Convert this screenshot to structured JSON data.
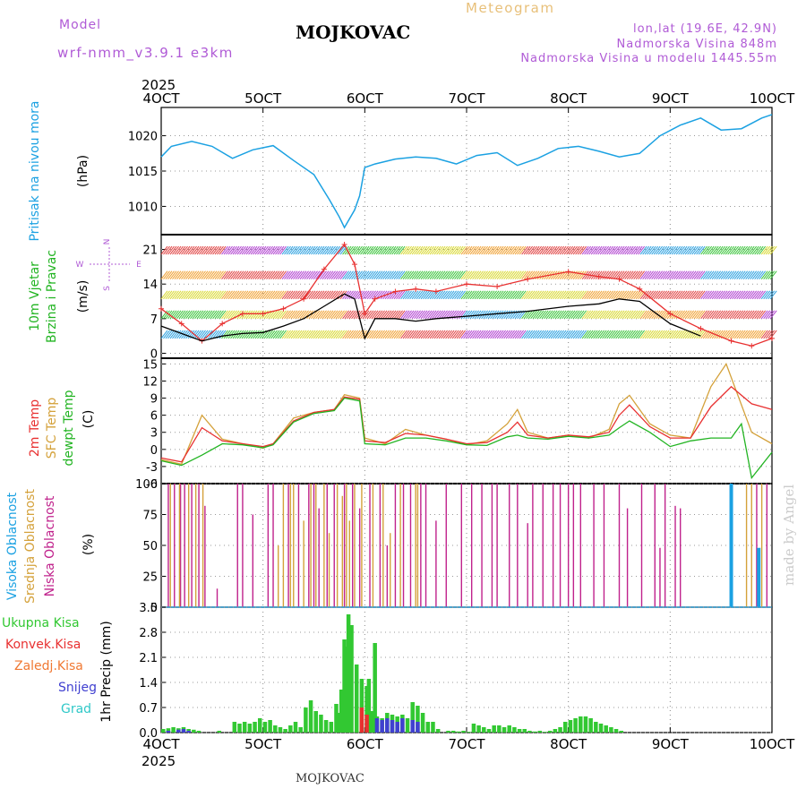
{
  "header": {
    "model_label": "Model",
    "model_name": "wrf-nmm_v3.9.1 e3km",
    "title": "MOJKOVAC",
    "subtitle": "Meteogram",
    "lonlat": "lon,lat (19.6E, 42.9N)",
    "elevation": "Nadmorska Visina 848m",
    "model_elevation": "Nadmorska Visina u modelu 1445.55m"
  },
  "time_axis": {
    "year_top": "2025",
    "year_bottom": "2025",
    "ticks": [
      "4OCT",
      "5OCT",
      "6OCT",
      "7OCT",
      "8OCT",
      "9OCT",
      "10OCT"
    ],
    "range_days": [
      4,
      10
    ]
  },
  "watermark": "made by Angel",
  "footer": "MOJKOVAC",
  "colors": {
    "pressure": "#1ba1e2",
    "wind_speed": "#000000",
    "gust": "#e83030",
    "temp2m": "#e83030",
    "sfc_temp": "#d4a13a",
    "dewpoint": "#22b422",
    "cloud_high": "#1ba1e2",
    "cloud_mid": "#d4a13a",
    "cloud_low": "#c0228c",
    "precip_total": "#32c832",
    "precip_conv": "#e83030",
    "precip_frozen": "#f07832",
    "precip_snow": "#4040d0",
    "precip_grad": "#30c8c8"
  },
  "chart_data": [
    {
      "type": "line",
      "title": "Pritisak na nivou mora",
      "ylabel": "(hPa)",
      "ylim": [
        1006,
        1024
      ],
      "yticks": [
        1010,
        1015,
        1020
      ],
      "series": [
        {
          "name": "Pritisak na nivou mora",
          "x": [
            4.0,
            4.1,
            4.3,
            4.5,
            4.7,
            4.9,
            5.1,
            5.3,
            5.5,
            5.65,
            5.75,
            5.8,
            5.9,
            5.95,
            6.0,
            6.1,
            6.3,
            6.5,
            6.7,
            6.9,
            7.1,
            7.3,
            7.5,
            7.7,
            7.9,
            8.1,
            8.3,
            8.5,
            8.7,
            8.9,
            9.1,
            9.3,
            9.5,
            9.7,
            9.9,
            10.0
          ],
          "values": [
            1017,
            1018.5,
            1019.2,
            1018.5,
            1016.8,
            1018.0,
            1018.6,
            1016.5,
            1014.5,
            1011.0,
            1008.5,
            1007.0,
            1009.5,
            1011.5,
            1015.5,
            1016.0,
            1016.7,
            1017.0,
            1016.8,
            1016.0,
            1017.2,
            1017.6,
            1015.8,
            1016.8,
            1018.2,
            1018.5,
            1017.8,
            1017.0,
            1017.5,
            1020.0,
            1021.5,
            1022.5,
            1020.8,
            1021.0,
            1022.5,
            1023.0
          ]
        }
      ]
    },
    {
      "type": "line",
      "title": "10m Vjetar Brzina i Pravac",
      "ylabel": "(m/s)",
      "compass": "N, E, S, W",
      "ylim": [
        -1,
        24
      ],
      "yticks": [
        0,
        7,
        14,
        21
      ],
      "series": [
        {
          "name": "Brzina",
          "x": [
            4.0,
            4.2,
            4.4,
            4.6,
            4.8,
            5.0,
            5.2,
            5.4,
            5.6,
            5.8,
            5.9,
            6.0,
            6.1,
            6.3,
            6.5,
            6.7,
            7.0,
            7.3,
            7.6,
            8.0,
            8.3,
            8.5,
            8.7,
            9.0,
            9.3
          ],
          "values": [
            5.5,
            4.0,
            2.5,
            3.5,
            4.0,
            4.2,
            5.5,
            7.0,
            9.5,
            12.0,
            11.0,
            3.0,
            7.0,
            7.0,
            6.5,
            7.0,
            7.5,
            8.0,
            8.5,
            9.5,
            10.0,
            11.0,
            10.5,
            6.0,
            3.5
          ]
        },
        {
          "name": "Udari",
          "x": [
            4.0,
            4.2,
            4.4,
            4.6,
            4.8,
            5.0,
            5.2,
            5.4,
            5.6,
            5.8,
            5.9,
            6.0,
            6.1,
            6.3,
            6.5,
            6.7,
            7.0,
            7.3,
            7.6,
            8.0,
            8.3,
            8.5,
            8.7,
            9.0,
            9.3,
            9.6,
            9.8,
            10.0
          ],
          "values": [
            9.0,
            6.0,
            2.5,
            6.0,
            8.0,
            8.0,
            9.0,
            11.0,
            17.0,
            22.0,
            18.0,
            8.0,
            11.0,
            12.5,
            13.0,
            12.5,
            14.0,
            13.5,
            15.0,
            16.5,
            15.5,
            15.0,
            13.0,
            8.0,
            5.0,
            2.5,
            1.5,
            3.0
          ]
        }
      ]
    },
    {
      "type": "line",
      "title": "2m Temp / SFC Temp / dewpt Temp",
      "ylabel": "(C)",
      "ylim": [
        -6,
        16
      ],
      "yticks": [
        -6,
        -3,
        0,
        3,
        6,
        9,
        12,
        15
      ],
      "series": [
        {
          "name": "2m Temp",
          "x": [
            4.0,
            4.2,
            4.4,
            4.6,
            4.8,
            5.0,
            5.1,
            5.3,
            5.5,
            5.7,
            5.8,
            5.95,
            6.0,
            6.2,
            6.4,
            6.6,
            6.8,
            7.0,
            7.2,
            7.4,
            7.5,
            7.6,
            7.8,
            8.0,
            8.2,
            8.4,
            8.5,
            8.6,
            8.8,
            9.0,
            9.2,
            9.4,
            9.6,
            9.8,
            10.0
          ],
          "values": [
            -1.5,
            -2.2,
            3.8,
            1.5,
            1.0,
            0.5,
            1.0,
            5.0,
            6.5,
            7.0,
            9.2,
            8.8,
            1.5,
            1.2,
            2.8,
            2.5,
            1.8,
            1.0,
            1.2,
            3.0,
            4.8,
            2.5,
            2.0,
            2.5,
            2.2,
            3.0,
            6.0,
            7.8,
            4.0,
            2.0,
            2.0,
            7.5,
            11.0,
            8.0,
            7.0
          ]
        },
        {
          "name": "SFC Temp",
          "x": [
            4.0,
            4.2,
            4.4,
            4.6,
            4.8,
            5.0,
            5.1,
            5.3,
            5.5,
            5.7,
            5.8,
            5.95,
            6.0,
            6.2,
            6.4,
            6.6,
            6.8,
            7.0,
            7.2,
            7.4,
            7.5,
            7.6,
            7.8,
            8.0,
            8.2,
            8.4,
            8.5,
            8.6,
            8.8,
            9.0,
            9.2,
            9.4,
            9.55,
            9.8,
            10.0
          ],
          "values": [
            -1.8,
            -2.6,
            6.0,
            1.8,
            1.0,
            0.2,
            1.0,
            5.5,
            6.5,
            7.0,
            9.6,
            9.0,
            2.0,
            1.0,
            3.5,
            2.5,
            1.8,
            0.8,
            1.5,
            4.5,
            7.0,
            3.0,
            2.0,
            2.5,
            2.0,
            3.5,
            8.0,
            9.5,
            4.5,
            2.5,
            2.0,
            11.0,
            15.0,
            3.0,
            1.0
          ]
        },
        {
          "name": "dewpt Temp",
          "x": [
            4.0,
            4.2,
            4.4,
            4.6,
            4.8,
            5.0,
            5.1,
            5.3,
            5.5,
            5.7,
            5.8,
            5.95,
            6.0,
            6.2,
            6.4,
            6.6,
            6.8,
            7.0,
            7.2,
            7.4,
            7.5,
            7.6,
            7.8,
            8.0,
            8.2,
            8.4,
            8.5,
            8.6,
            8.8,
            9.0,
            9.2,
            9.4,
            9.6,
            9.7,
            9.8,
            10.0
          ],
          "values": [
            -2.0,
            -2.8,
            -1.0,
            1.0,
            0.8,
            0.3,
            0.8,
            4.8,
            6.3,
            6.8,
            9.0,
            8.5,
            1.0,
            0.8,
            2.0,
            2.0,
            1.5,
            0.8,
            0.7,
            2.2,
            2.5,
            2.0,
            1.8,
            2.3,
            2.0,
            2.5,
            3.8,
            5.0,
            3.0,
            0.5,
            1.5,
            2.0,
            2.0,
            4.5,
            -5.0,
            -0.5
          ]
        }
      ]
    },
    {
      "type": "bar",
      "title": "Visoka / Srednja / Niska Oblacnost",
      "ylabel": "(%)",
      "ylim": [
        0,
        100
      ],
      "yticks": [
        0,
        25,
        50,
        75,
        100
      ],
      "series": [
        {
          "name": "Niska Oblacnost",
          "x": [
            4.07,
            4.13,
            4.19,
            4.23,
            4.3,
            4.37,
            4.43,
            4.55,
            4.75,
            4.8,
            4.9,
            5.05,
            5.1,
            5.25,
            5.35,
            5.45,
            5.5,
            5.55,
            5.63,
            5.7,
            5.8,
            5.88,
            5.95,
            6.05,
            6.15,
            6.22,
            6.3,
            6.38,
            6.45,
            6.55,
            6.6,
            6.7,
            6.8,
            6.95,
            7.05,
            7.15,
            7.25,
            7.3,
            7.42,
            7.5,
            7.6,
            7.65,
            7.75,
            7.85,
            7.92,
            8.0,
            8.05,
            8.12,
            8.25,
            8.35,
            8.5,
            8.58,
            8.72,
            8.85,
            8.9,
            8.95,
            9.05,
            9.1,
            9.85,
            9.95
          ],
          "values": [
            100,
            100,
            100,
            100,
            100,
            100,
            82,
            15,
            100,
            100,
            75,
            100,
            100,
            100,
            100,
            100,
            100,
            80,
            100,
            100,
            100,
            100,
            80,
            100,
            100,
            50,
            100,
            100,
            100,
            100,
            100,
            70,
            100,
            100,
            100,
            100,
            100,
            100,
            100,
            100,
            68,
            100,
            100,
            100,
            100,
            100,
            100,
            100,
            100,
            100,
            100,
            80,
            100,
            100,
            48,
            100,
            82,
            80,
            100,
            100
          ]
        },
        {
          "name": "Srednja Oblacnost",
          "x": [
            4.09,
            4.18,
            4.27,
            4.34,
            4.41,
            5.15,
            5.2,
            5.27,
            5.3,
            5.4,
            5.47,
            5.52,
            5.6,
            5.65,
            5.73,
            5.78,
            5.82,
            5.85,
            5.9,
            5.97,
            6.08,
            6.18,
            6.25,
            6.35,
            6.5,
            6.52,
            9.75,
            9.8,
            9.9
          ],
          "values": [
            100,
            100,
            100,
            100,
            100,
            50,
            100,
            100,
            100,
            70,
            100,
            100,
            100,
            60,
            100,
            90,
            100,
            70,
            100,
            100,
            100,
            100,
            60,
            100,
            100,
            100,
            100,
            100,
            100
          ]
        },
        {
          "name": "Visoka Oblacnost",
          "x": [
            9.6,
            9.87
          ],
          "values": [
            100,
            48
          ]
        }
      ]
    },
    {
      "type": "bar",
      "title": "1hr Precip",
      "ylabel": "1hr Precip (mm)",
      "ylim": [
        0,
        3.5
      ],
      "yticks": [
        0,
        0.7,
        1.4,
        2.1,
        2.8,
        3.5
      ],
      "legend": [
        "Ukupna Kisa",
        "Konvek.Kisa",
        "Zaledj.Kisa",
        "Snijeg",
        "Grad"
      ],
      "series": [
        {
          "name": "Ukupna Kisa",
          "x": [
            4.0,
            4.05,
            4.1,
            4.15,
            4.2,
            4.25,
            4.3,
            4.35,
            4.55,
            4.7,
            4.75,
            4.8,
            4.85,
            4.9,
            4.95,
            5.0,
            5.05,
            5.1,
            5.15,
            5.2,
            5.25,
            5.3,
            5.35,
            5.4,
            5.45,
            5.5,
            5.55,
            5.6,
            5.65,
            5.7,
            5.72,
            5.75,
            5.78,
            5.8,
            5.82,
            5.85,
            5.9,
            5.95,
            6.0,
            6.02,
            6.05,
            6.08,
            6.1,
            6.15,
            6.2,
            6.25,
            6.3,
            6.35,
            6.4,
            6.45,
            6.5,
            6.55,
            6.6,
            6.65,
            6.7,
            6.8,
            6.85,
            6.9,
            6.95,
            7.0,
            7.05,
            7.1,
            7.15,
            7.2,
            7.25,
            7.3,
            7.35,
            7.4,
            7.45,
            7.5,
            7.55,
            7.6,
            7.65,
            7.7,
            7.75,
            7.8,
            7.85,
            7.9,
            7.95,
            8.0,
            8.05,
            8.1,
            8.15,
            8.2,
            8.25,
            8.3,
            8.35,
            8.4,
            8.45,
            8.5
          ],
          "values": [
            0.1,
            0.12,
            0.15,
            0.12,
            0.15,
            0.1,
            0.08,
            0.05,
            0.05,
            0.3,
            0.25,
            0.3,
            0.25,
            0.3,
            0.4,
            0.3,
            0.35,
            0.2,
            0.15,
            0.1,
            0.2,
            0.3,
            0.15,
            0.7,
            0.9,
            0.6,
            0.5,
            0.35,
            0.3,
            0.8,
            0.55,
            1.2,
            2.6,
            2.4,
            3.3,
            3.0,
            1.9,
            1.5,
            1.3,
            1.5,
            0.6,
            2.5,
            0.45,
            0.4,
            0.55,
            0.5,
            0.45,
            0.5,
            0.4,
            0.85,
            0.75,
            0.55,
            0.3,
            0.3,
            0.1,
            0.05,
            0.05,
            0.03,
            0.05,
            0.02,
            0.25,
            0.2,
            0.15,
            0.1,
            0.2,
            0.2,
            0.15,
            0.2,
            0.15,
            0.1,
            0.1,
            0.05,
            0.03,
            0.05,
            0.02,
            0.05,
            0.1,
            0.15,
            0.3,
            0.35,
            0.4,
            0.45,
            0.45,
            0.4,
            0.3,
            0.25,
            0.2,
            0.15,
            0.1,
            0.05
          ]
        },
        {
          "name": "Konvek.Kisa",
          "x": [
            5.95,
            6.0
          ],
          "values": [
            0.7,
            0.5
          ]
        },
        {
          "name": "Snijeg",
          "x": [
            4.05,
            4.15,
            4.2,
            4.25,
            6.1,
            6.15,
            6.2,
            6.25,
            6.3,
            6.35,
            6.45,
            6.5
          ],
          "values": [
            0.05,
            0.08,
            0.1,
            0.05,
            0.4,
            0.35,
            0.4,
            0.35,
            0.3,
            0.4,
            0.35,
            0.3
          ]
        }
      ]
    }
  ],
  "labels": {
    "p1": {
      "lines": [
        "Pritisak na nivou mora"
      ],
      "unit": "(hPa)"
    },
    "p2": {
      "lines": [
        "10m Vjetar",
        "Brzina i Pravac"
      ],
      "unit": "(m/s)",
      "compass": {
        "n": "N",
        "e": "E",
        "s": "S",
        "w": "W"
      }
    },
    "p3": {
      "line1": "2m Temp",
      "line2": "SFC Temp",
      "line3": "dewpt Temp",
      "unit": "(C)"
    },
    "p4": {
      "line1": "Visoka Oblacnost",
      "line2": "Srednja Oblacnost",
      "line3": "Niska Oblacnost",
      "unit": "(%)"
    },
    "p5": {
      "legend": [
        "Ukupna Kisa",
        "Konvek.Kisa",
        "Zaledj.Kisa",
        "Snijeg",
        "Grad"
      ],
      "unit": "1hr Precip (mm)"
    }
  }
}
